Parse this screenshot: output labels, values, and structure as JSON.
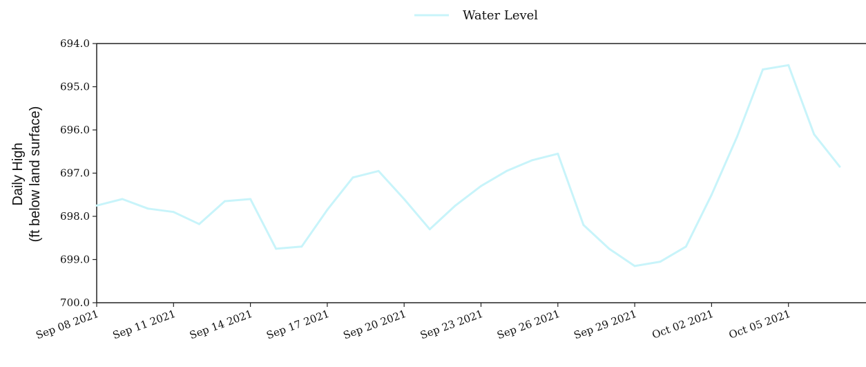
{
  "chart_data": {
    "type": "line",
    "legend": {
      "position": "top-center",
      "entries": [
        "Water Level"
      ]
    },
    "ylabel_lines": [
      "Daily High",
      "(ft below land surface)"
    ],
    "y_inverted": true,
    "ylim": [
      694.0,
      700.0
    ],
    "y_ticks": [
      "694.0",
      "695.0",
      "696.0",
      "697.0",
      "698.0",
      "699.0",
      "700.0"
    ],
    "x_ticks": [
      "Sep 08 2021",
      "Sep 11 2021",
      "Sep 14 2021",
      "Sep 17 2021",
      "Sep 20 2021",
      "Sep 23 2021",
      "Sep 26 2021",
      "Sep 29 2021",
      "Oct 02 2021",
      "Oct 05 2021"
    ],
    "grid": false,
    "colors": {
      "line": "#c8f4fa",
      "axis": "#222222"
    },
    "series": [
      {
        "name": "Water Level",
        "x": [
          "Sep 08 2021",
          "Sep 09 2021",
          "Sep 10 2021",
          "Sep 11 2021",
          "Sep 12 2021",
          "Sep 13 2021",
          "Sep 14 2021",
          "Sep 15 2021",
          "Sep 16 2021",
          "Sep 17 2021",
          "Sep 18 2021",
          "Sep 19 2021",
          "Sep 20 2021",
          "Sep 21 2021",
          "Sep 22 2021",
          "Sep 23 2021",
          "Sep 24 2021",
          "Sep 25 2021",
          "Sep 26 2021",
          "Sep 27 2021",
          "Sep 28 2021",
          "Sep 29 2021",
          "Sep 30 2021",
          "Oct 01 2021",
          "Oct 02 2021",
          "Oct 03 2021",
          "Oct 04 2021",
          "Oct 05 2021",
          "Oct 06 2021",
          "Oct 07 2021"
        ],
        "values": [
          697.75,
          697.6,
          697.82,
          697.9,
          698.18,
          697.65,
          697.6,
          698.75,
          698.7,
          697.85,
          697.1,
          696.95,
          697.6,
          698.3,
          697.75,
          697.3,
          696.95,
          696.7,
          696.55,
          698.2,
          698.75,
          699.15,
          699.05,
          698.7,
          697.5,
          696.15,
          694.6,
          694.5,
          696.1,
          696.85
        ]
      }
    ]
  }
}
